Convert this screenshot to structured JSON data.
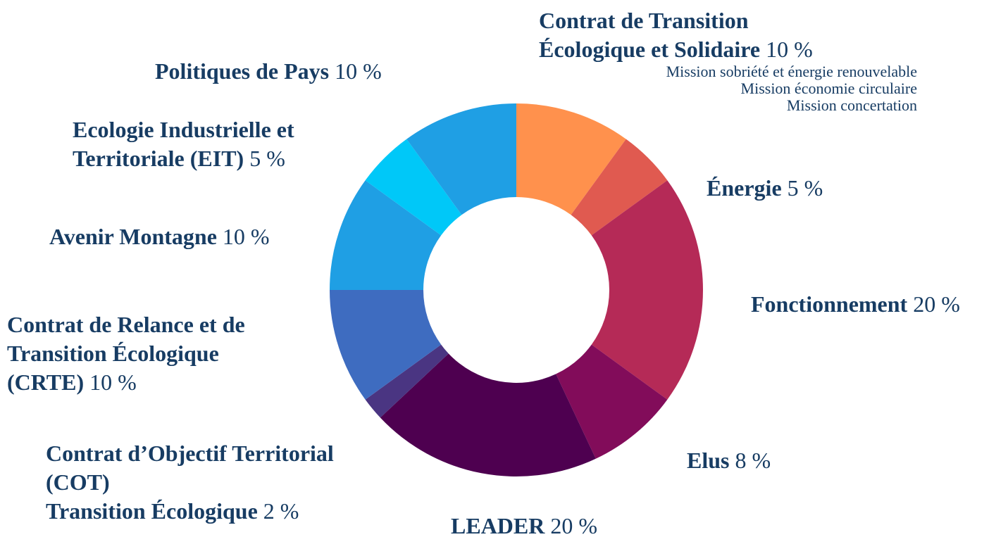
{
  "chart_data": {
    "type": "pie",
    "categories": [
      "Contrat de Transition\nÉcologique et Solidaire",
      "Énergie",
      "Fonctionnement",
      "Elus",
      "LEADER",
      "Contrat d’Objectif Territorial\n(COT)\nTransition Écologique",
      "Contrat de Relance et de\nTransition Écologique\n(CRTE)",
      "Avenir Montagne",
      "Ecologie Industrielle et\nTerritoriale (EIT)",
      "Politiques de Pays"
    ],
    "values": [
      10,
      5,
      20,
      8,
      20,
      2,
      10,
      10,
      5,
      10
    ],
    "value_labels": [
      "10 %",
      "5 %",
      "20 %",
      "8 %",
      "20 %",
      "2 %",
      "10 %",
      "10 %",
      "5 %",
      "10 %"
    ],
    "colors": [
      "#ff914d",
      "#e05a50",
      "#b52a57",
      "#820c5a",
      "#4e0050",
      "#4a3582",
      "#3e6cc0",
      "#1f9fe4",
      "#00c8f8",
      "#1f9fe4"
    ],
    "annotations": [
      "Mission sobriété et énergie renouvelable",
      "Mission économie circulaire",
      "Mission concertation"
    ]
  }
}
